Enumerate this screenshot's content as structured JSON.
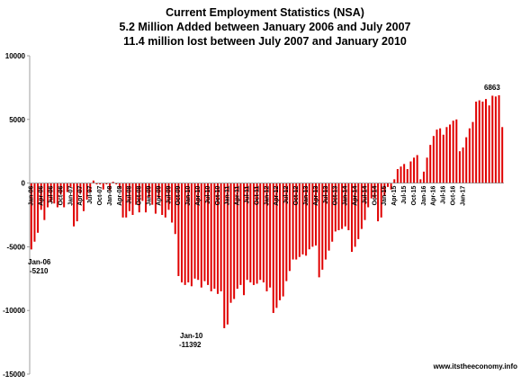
{
  "chart_data": {
    "type": "bar",
    "title": [
      "Current Employment Statistics (NSA)",
      "5.2 Million Added between January 2006 and July 2007",
      "11.4 million lost between July 2007 and January 2010"
    ],
    "ylim": [
      -15000,
      10000
    ],
    "yticks": [
      10000,
      5000,
      0,
      -5000,
      -10000,
      -15000
    ],
    "bar_color": "#e00000",
    "grid": false,
    "x_tick_labels": [
      "Jan-06",
      "Apr-06",
      "Jul-06",
      "Oct-06",
      "Jan-07",
      "Apr-07",
      "Jul-07",
      "Oct-07",
      "Jan-08",
      "Apr-08",
      "Jul-08",
      "Oct-08",
      "Jan-09",
      "Apr-09",
      "Jul-09",
      "Oct-09",
      "Jan-10",
      "Apr-10",
      "Jul-10",
      "Oct-10",
      "Jan-11",
      "Apr-11",
      "Jul-11",
      "Oct-11",
      "Jan-12",
      "Apr-12",
      "Jul-12",
      "Oct-12",
      "Jan-13",
      "Apr-13",
      "Jul-13",
      "Oct-13",
      "Jan-14",
      "Apr-14",
      "Jul-14",
      "Oct-14",
      "Jan-15",
      "Apr-15",
      "Jul-15",
      "Oct-15",
      "Jan-16",
      "Apr-16",
      "Jul-16",
      "Oct-16",
      "Jan-17"
    ],
    "values": [
      -5210,
      -4600,
      -3900,
      -2100,
      -2900,
      -1900,
      -1500,
      -1600,
      -1900,
      -900,
      -1900,
      -700,
      -300,
      -3400,
      -3000,
      -800,
      -2200,
      -1300,
      -700,
      200,
      -100,
      -100,
      -500,
      -100,
      -600,
      100,
      -100,
      -400,
      -2700,
      -2700,
      -2200,
      -2500,
      -1700,
      -2300,
      -1400,
      -2300,
      -1100,
      -1700,
      -2400,
      -1200,
      -2500,
      -2700,
      -2100,
      -3100,
      -4000,
      -7300,
      -7800,
      -8000,
      -7800,
      -8100,
      -7500,
      -7600,
      -8200,
      -7700,
      -8000,
      -8500,
      -8300,
      -8700,
      -8500,
      -11392,
      -11100,
      -9400,
      -9100,
      -8300,
      -8000,
      -8800,
      -7600,
      -7800,
      -8000,
      -7900,
      -7600,
      -7800,
      -8500,
      -8200,
      -10200,
      -9800,
      -9200,
      -8900,
      -7700,
      -6900,
      -6000,
      -6000,
      -5800,
      -5600,
      -5700,
      -5200,
      -5000,
      -4900,
      -7400,
      -6800,
      -6000,
      -5300,
      -4600,
      -3800,
      -3700,
      -3600,
      -3400,
      -3700,
      -5400,
      -5000,
      -4400,
      -3600,
      -2900,
      -1900,
      -1200,
      -1200,
      -3000,
      -2700,
      -1000,
      -300,
      -500,
      300,
      1100,
      1300,
      1500,
      1100,
      1700,
      2000,
      2200,
      300,
      900,
      2000,
      3000,
      3700,
      4200,
      4300,
      3800,
      4400,
      4600,
      4900,
      5000,
      2500,
      2800,
      3600,
      4300,
      4800,
      6400,
      6500,
      6400,
      6600,
      6100,
      6863,
      6800,
      6900,
      4400
    ],
    "annotations": [
      {
        "label": "Jan-06",
        "value": "-5210",
        "index": 0
      },
      {
        "label": "Jan-10",
        "value": "-11392",
        "index": 59
      },
      {
        "label": "",
        "value": "6863",
        "index": 140
      }
    ]
  },
  "credit": "www.itstheeconomy.info"
}
